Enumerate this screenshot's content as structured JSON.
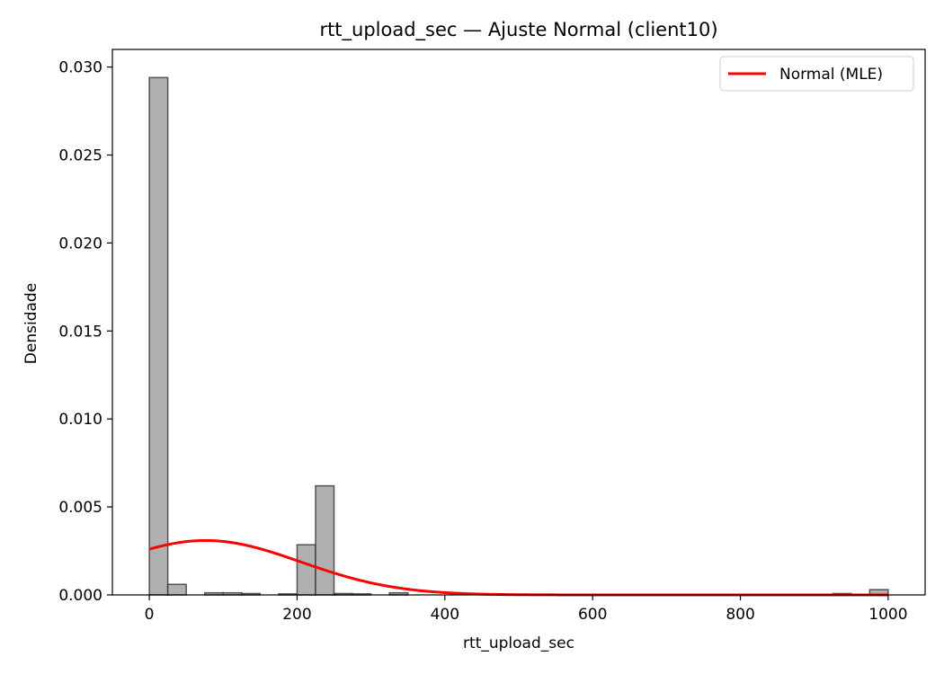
{
  "chart_data": {
    "type": "bar",
    "title": "rtt_upload_sec — Ajuste Normal (client10)",
    "xlabel": "rtt_upload_sec",
    "ylabel": "Densidade",
    "xlim": [
      -50,
      1050
    ],
    "ylim": [
      0,
      0.031
    ],
    "xticks": [
      0,
      200,
      400,
      600,
      800,
      1000
    ],
    "xtick_labels": [
      "0",
      "200",
      "400",
      "600",
      "800",
      "1000"
    ],
    "yticks": [
      0.0,
      0.005,
      0.01,
      0.015,
      0.02,
      0.025,
      0.03
    ],
    "ytick_labels": [
      "0.000",
      "0.005",
      "0.010",
      "0.015",
      "0.020",
      "0.025",
      "0.030"
    ],
    "bins": {
      "edges": [
        0,
        25,
        50,
        75,
        100,
        125,
        150,
        175,
        200,
        225,
        250,
        275,
        300,
        325,
        350,
        375,
        400,
        425,
        450,
        475,
        500,
        525,
        550,
        575,
        600,
        625,
        650,
        675,
        700,
        725,
        750,
        775,
        800,
        825,
        850,
        875,
        900,
        925,
        950,
        975,
        1000
      ],
      "density": [
        0.0294,
        0.0006,
        0,
        0.00012,
        0.00012,
        8e-05,
        0,
        6e-05,
        0.00285,
        0.0062,
        8e-05,
        6e-05,
        0,
        0.00012,
        0,
        0,
        0,
        0,
        0,
        0,
        0,
        0,
        0,
        0,
        0,
        0,
        0,
        0,
        0,
        0,
        0,
        0,
        0,
        0,
        0,
        0,
        0,
        8e-05,
        0,
        0.0003
      ]
    },
    "histogram_color": "#b0b0b0",
    "series": [
      {
        "name": "Normal (MLE)",
        "type": "line",
        "color": "#ff0000",
        "distribution": "normal",
        "mean": 76,
        "std": 129,
        "x_range": [
          0,
          1000
        ]
      }
    ],
    "legend": {
      "position": "top-right",
      "entries": [
        "Normal (MLE)"
      ]
    },
    "grid": false
  }
}
